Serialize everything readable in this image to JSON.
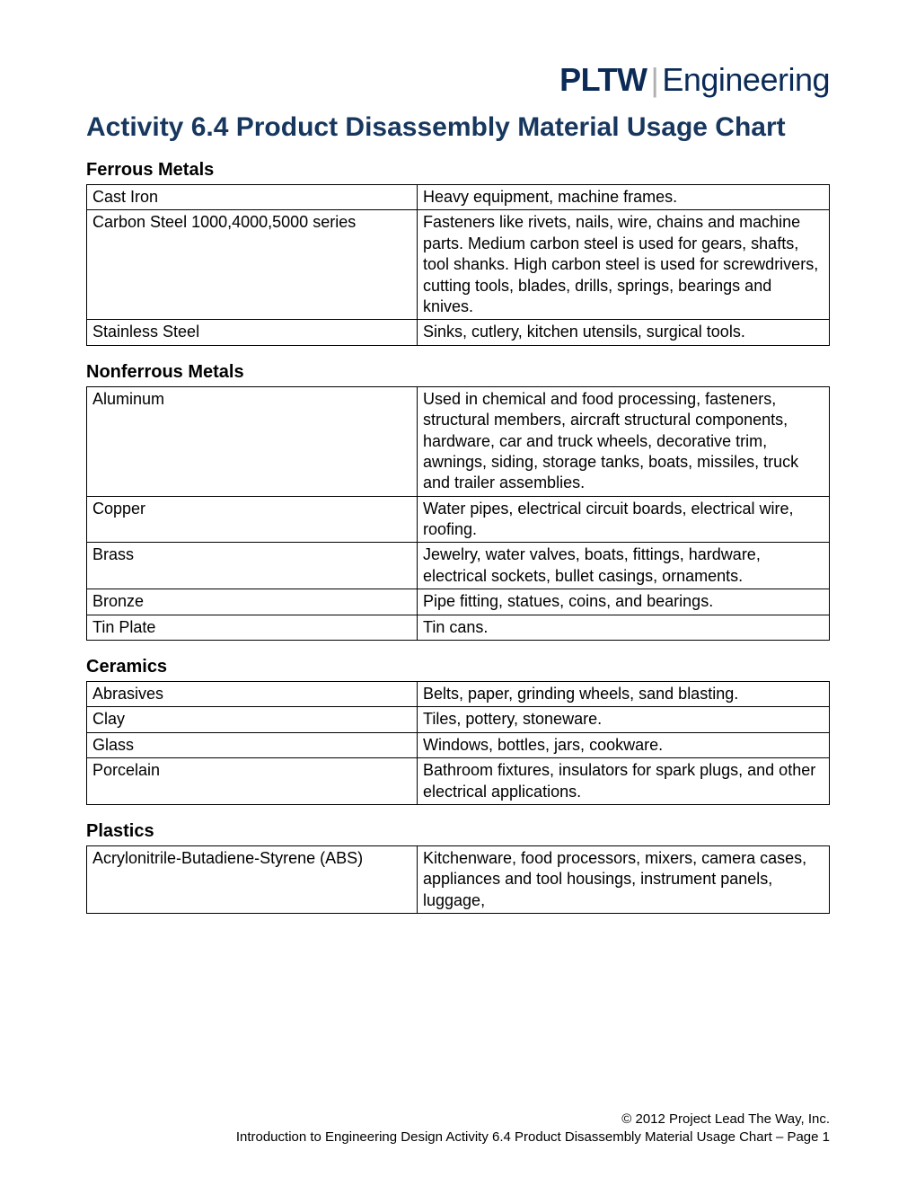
{
  "logo": {
    "brand": "PLTW",
    "suffix": "Engineering",
    "brand_color": "#0b2a56"
  },
  "title": "Activity 6.4 Product Disassembly Material Usage Chart",
  "title_color": "#17375e",
  "sections": [
    {
      "heading": "Ferrous Metals",
      "rows": [
        {
          "material": "Cast Iron",
          "usage": "Heavy equipment, machine frames."
        },
        {
          "material": "Carbon Steel 1000,4000,5000 series",
          "usage": "Fasteners like rivets, nails, wire, chains and machine parts. Medium carbon steel is used for gears, shafts, tool shanks. High carbon steel is used for screwdrivers, cutting tools, blades, drills, springs, bearings and knives."
        },
        {
          "material": "Stainless Steel",
          "usage": "Sinks, cutlery, kitchen utensils, surgical tools."
        }
      ]
    },
    {
      "heading": "Nonferrous Metals",
      "rows": [
        {
          "material": "Aluminum",
          "usage": "Used in chemical and food processing, fasteners, structural members, aircraft structural components, hardware, car and truck wheels, decorative trim, awnings, siding, storage tanks, boats, missiles, truck and trailer assemblies."
        },
        {
          "material": "Copper",
          "usage": "Water pipes, electrical circuit boards, electrical wire, roofing."
        },
        {
          "material": "Brass",
          "usage": "Jewelry, water valves, boats, fittings, hardware, electrical sockets, bullet casings, ornaments."
        },
        {
          "material": "Bronze",
          "usage": "Pipe fitting, statues, coins, and bearings."
        },
        {
          "material": "Tin Plate",
          "usage": "Tin cans."
        }
      ]
    },
    {
      "heading": "Ceramics",
      "rows": [
        {
          "material": "Abrasives",
          "usage": "Belts, paper, grinding wheels, sand blasting."
        },
        {
          "material": "Clay",
          "usage": "Tiles, pottery, stoneware."
        },
        {
          "material": "Glass",
          "usage": "Windows, bottles, jars, cookware."
        },
        {
          "material": "Porcelain",
          "usage": "Bathroom fixtures, insulators for spark plugs, and other electrical applications."
        }
      ]
    },
    {
      "heading": "Plastics",
      "rows": [
        {
          "material": "Acrylonitrile-Butadiene-Styrene (ABS)",
          "usage": "Kitchenware, food processors, mixers, camera cases, appliances and tool housings, instrument panels, luggage,"
        }
      ]
    }
  ],
  "footer": {
    "line1": "© 2012 Project Lead The Way, Inc.",
    "line2": "Introduction to Engineering Design Activity 6.4 Product Disassembly Material Usage Chart – Page 1"
  }
}
